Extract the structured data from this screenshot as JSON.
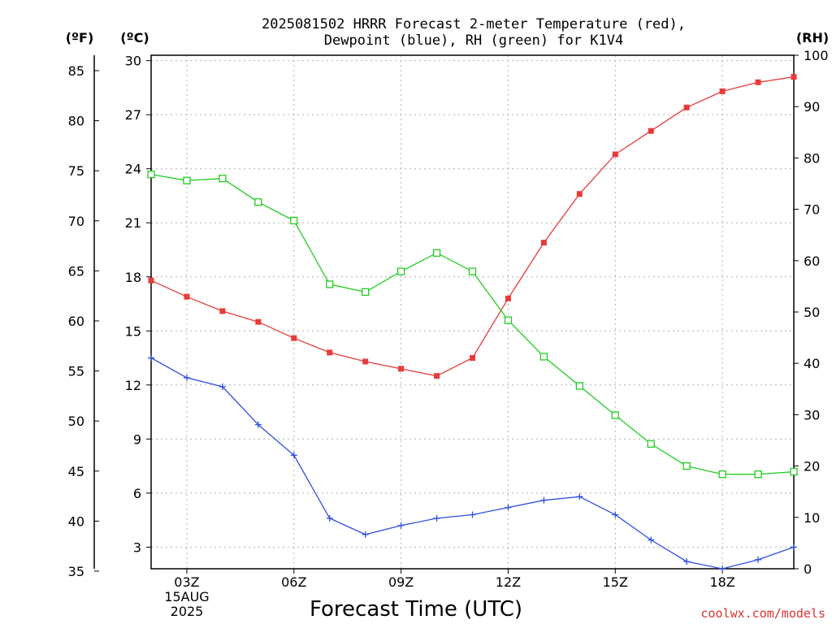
{
  "title_line1": "2025081502 HRRR Forecast 2-meter Temperature (red),",
  "title_line2": "Dewpoint (blue), RH (green) for K1V4",
  "unit_f": "(ºF)",
  "unit_c": "(ºC)",
  "unit_rh": "(RH)",
  "xlabel": "Forecast Time (UTC)",
  "date_line1": "15AUG",
  "date_line2": "2025",
  "credit": "coolwx.com/models",
  "colors": {
    "temperature": "#e83a3a",
    "dewpoint": "#3050e0",
    "rh": "#22cc22",
    "grid": "#b0b0b0"
  },
  "chart_data": {
    "type": "line",
    "x": [
      2,
      3,
      4,
      5,
      6,
      7,
      8,
      9,
      10,
      11,
      12,
      13,
      14,
      15,
      16,
      17,
      18,
      19,
      20
    ],
    "xlim": [
      2,
      20
    ],
    "x_ticks": [
      3,
      6,
      9,
      12,
      15,
      18
    ],
    "x_tick_labels": [
      "03Z",
      "06Z",
      "09Z",
      "12Z",
      "15Z",
      "18Z"
    ],
    "y_left_c": {
      "lim": [
        1.8,
        30.3
      ],
      "ticks": [
        3,
        6,
        9,
        12,
        15,
        18,
        21,
        24,
        27,
        30
      ]
    },
    "y_left_f": {
      "ticks": [
        35,
        40,
        45,
        50,
        55,
        60,
        65,
        70,
        75,
        80,
        85
      ]
    },
    "y_right_rh": {
      "lim": [
        0,
        100
      ],
      "ticks": [
        0,
        10,
        20,
        30,
        40,
        50,
        60,
        70,
        80,
        90,
        100
      ]
    },
    "grid": true,
    "series": [
      {
        "key": "temperature",
        "axis": "C",
        "marker": "filled-square",
        "values": [
          17.8,
          16.9,
          16.1,
          15.5,
          14.6,
          13.8,
          13.3,
          12.9,
          12.5,
          13.5,
          16.8,
          19.9,
          22.6,
          24.8,
          26.1,
          27.4,
          28.3,
          28.8,
          29.1
        ]
      },
      {
        "key": "dewpoint",
        "axis": "C",
        "marker": "plus",
        "values": [
          13.5,
          12.4,
          11.9,
          9.8,
          8.1,
          4.6,
          3.7,
          4.2,
          4.6,
          4.8,
          5.2,
          5.6,
          5.8,
          4.8,
          3.4,
          2.2,
          1.8,
          2.3,
          3.0
        ]
      },
      {
        "key": "rh",
        "axis": "RH",
        "marker": "open-square",
        "values": [
          76.8,
          75.6,
          76.0,
          71.4,
          67.8,
          55.4,
          53.9,
          57.9,
          61.5,
          57.9,
          48.4,
          41.3,
          35.6,
          29.9,
          24.3,
          20.0,
          18.4,
          18.4,
          18.9
        ]
      }
    ]
  }
}
